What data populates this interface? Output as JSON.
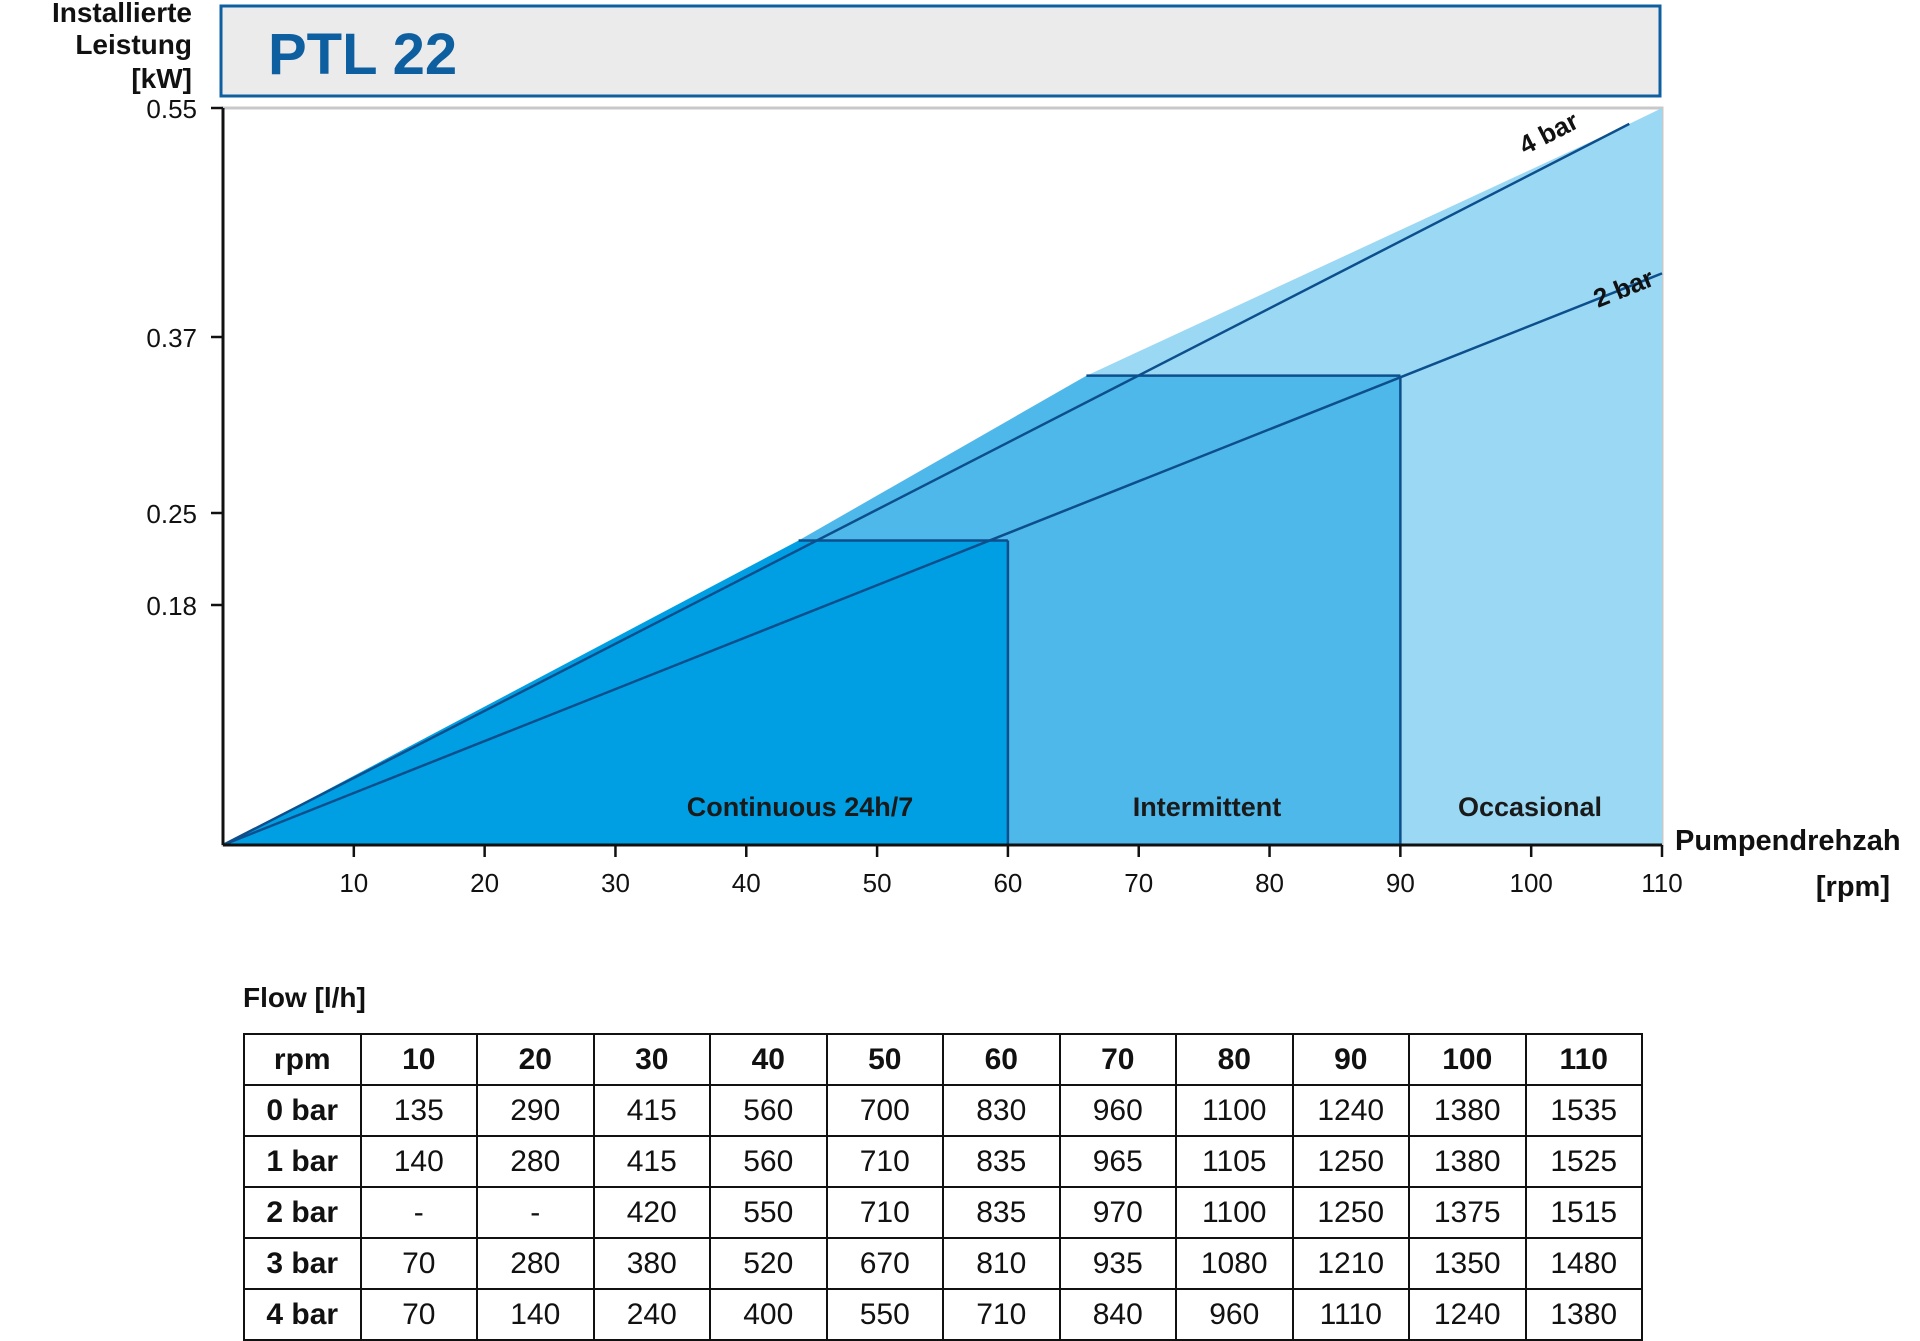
{
  "chart_data": {
    "type": "area",
    "title": "PTL 22",
    "ylabel_lines": [
      "Installierte",
      "Leistung",
      "[kW]"
    ],
    "xlabel_lines": [
      "Pumpendrehzah",
      "[rpm]"
    ],
    "xlim": [
      0,
      110
    ],
    "x_ticks": [
      10,
      20,
      30,
      40,
      50,
      60,
      70,
      80,
      90,
      100,
      110
    ],
    "y_ticks": [
      0.18,
      0.25,
      0.37,
      0.55
    ],
    "series": [
      {
        "name": "4 bar",
        "x": [
          0,
          110
        ],
        "y": [
          0,
          0.55
        ]
      },
      {
        "name": "2 bar",
        "x": [
          0,
          110
        ],
        "y": [
          0,
          0.42
        ]
      }
    ],
    "regions": [
      {
        "label": "Continuous 24h/7",
        "x_start": 0,
        "x_end": 60,
        "color": "#009fe3"
      },
      {
        "label": "Intermittent",
        "x_start": 60,
        "x_end": 90,
        "color": "#4fb8ea"
      },
      {
        "label": "Occasional",
        "x_start": 90,
        "x_end": 110,
        "color": "#9ad8f4"
      }
    ],
    "grid": false
  },
  "table": {
    "title": "Flow [l/h]",
    "header_label": "rpm",
    "columns": [
      "10",
      "20",
      "30",
      "40",
      "50",
      "60",
      "70",
      "80",
      "90",
      "100",
      "110"
    ],
    "rows": [
      {
        "label": "0 bar",
        "values": [
          "135",
          "290",
          "415",
          "560",
          "700",
          "830",
          "960",
          "1100",
          "1240",
          "1380",
          "1535"
        ]
      },
      {
        "label": "1 bar",
        "values": [
          "140",
          "280",
          "415",
          "560",
          "710",
          "835",
          "965",
          "1105",
          "1250",
          "1380",
          "1525"
        ]
      },
      {
        "label": "2 bar",
        "values": [
          "-",
          "-",
          "420",
          "550",
          "710",
          "835",
          "970",
          "1100",
          "1250",
          "1375",
          "1515"
        ]
      },
      {
        "label": "3 bar",
        "values": [
          "70",
          "280",
          "380",
          "520",
          "670",
          "810",
          "935",
          "1080",
          "1210",
          "1350",
          "1480"
        ]
      },
      {
        "label": "4 bar",
        "values": [
          "70",
          "140",
          "240",
          "400",
          "550",
          "710",
          "840",
          "960",
          "1110",
          "1240",
          "1380"
        ]
      }
    ]
  }
}
